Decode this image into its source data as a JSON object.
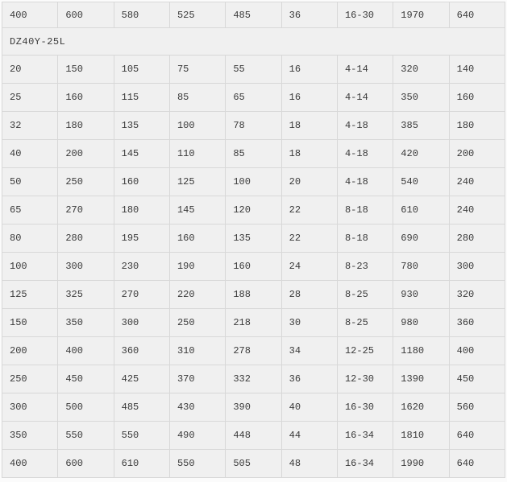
{
  "page": {
    "background": "#fbfbfb"
  },
  "colors": {
    "cell_bg": "#f0f0f0",
    "border": "#d8d8d8",
    "text": "#3a3a3a"
  },
  "table": {
    "columns": 9,
    "top_row": [
      "400",
      "600",
      "580",
      "525",
      "485",
      "36",
      "16-30",
      "1970",
      "640"
    ],
    "section_label": "DZ40Y-25L",
    "rows": [
      [
        "20",
        "150",
        "105",
        "75",
        "55",
        "16",
        "4-14",
        "320",
        "140"
      ],
      [
        "25",
        "160",
        "115",
        "85",
        "65",
        "16",
        "4-14",
        "350",
        "160"
      ],
      [
        "32",
        "180",
        "135",
        "100",
        "78",
        "18",
        "4-18",
        "385",
        "180"
      ],
      [
        "40",
        "200",
        "145",
        "110",
        "85",
        "18",
        "4-18",
        "420",
        "200"
      ],
      [
        "50",
        "250",
        "160",
        "125",
        "100",
        "20",
        "4-18",
        "540",
        "240"
      ],
      [
        "65",
        "270",
        "180",
        "145",
        "120",
        "22",
        "8-18",
        "610",
        "240"
      ],
      [
        "80",
        "280",
        "195",
        "160",
        "135",
        "22",
        "8-18",
        "690",
        "280"
      ],
      [
        "100",
        "300",
        "230",
        "190",
        "160",
        "24",
        "8-23",
        "780",
        "300"
      ],
      [
        "125",
        "325",
        "270",
        "220",
        "188",
        "28",
        "8-25",
        "930",
        "320"
      ],
      [
        "150",
        "350",
        "300",
        "250",
        "218",
        "30",
        "8-25",
        "980",
        "360"
      ],
      [
        "200",
        "400",
        "360",
        "310",
        "278",
        "34",
        "12-25",
        "1180",
        "400"
      ],
      [
        "250",
        "450",
        "425",
        "370",
        "332",
        "36",
        "12-30",
        "1390",
        "450"
      ],
      [
        "300",
        "500",
        "485",
        "430",
        "390",
        "40",
        "16-30",
        "1620",
        "560"
      ],
      [
        "350",
        "550",
        "550",
        "490",
        "448",
        "44",
        "16-34",
        "1810",
        "640"
      ],
      [
        "400",
        "600",
        "610",
        "550",
        "505",
        "48",
        "16-34",
        "1990",
        "640"
      ]
    ]
  }
}
